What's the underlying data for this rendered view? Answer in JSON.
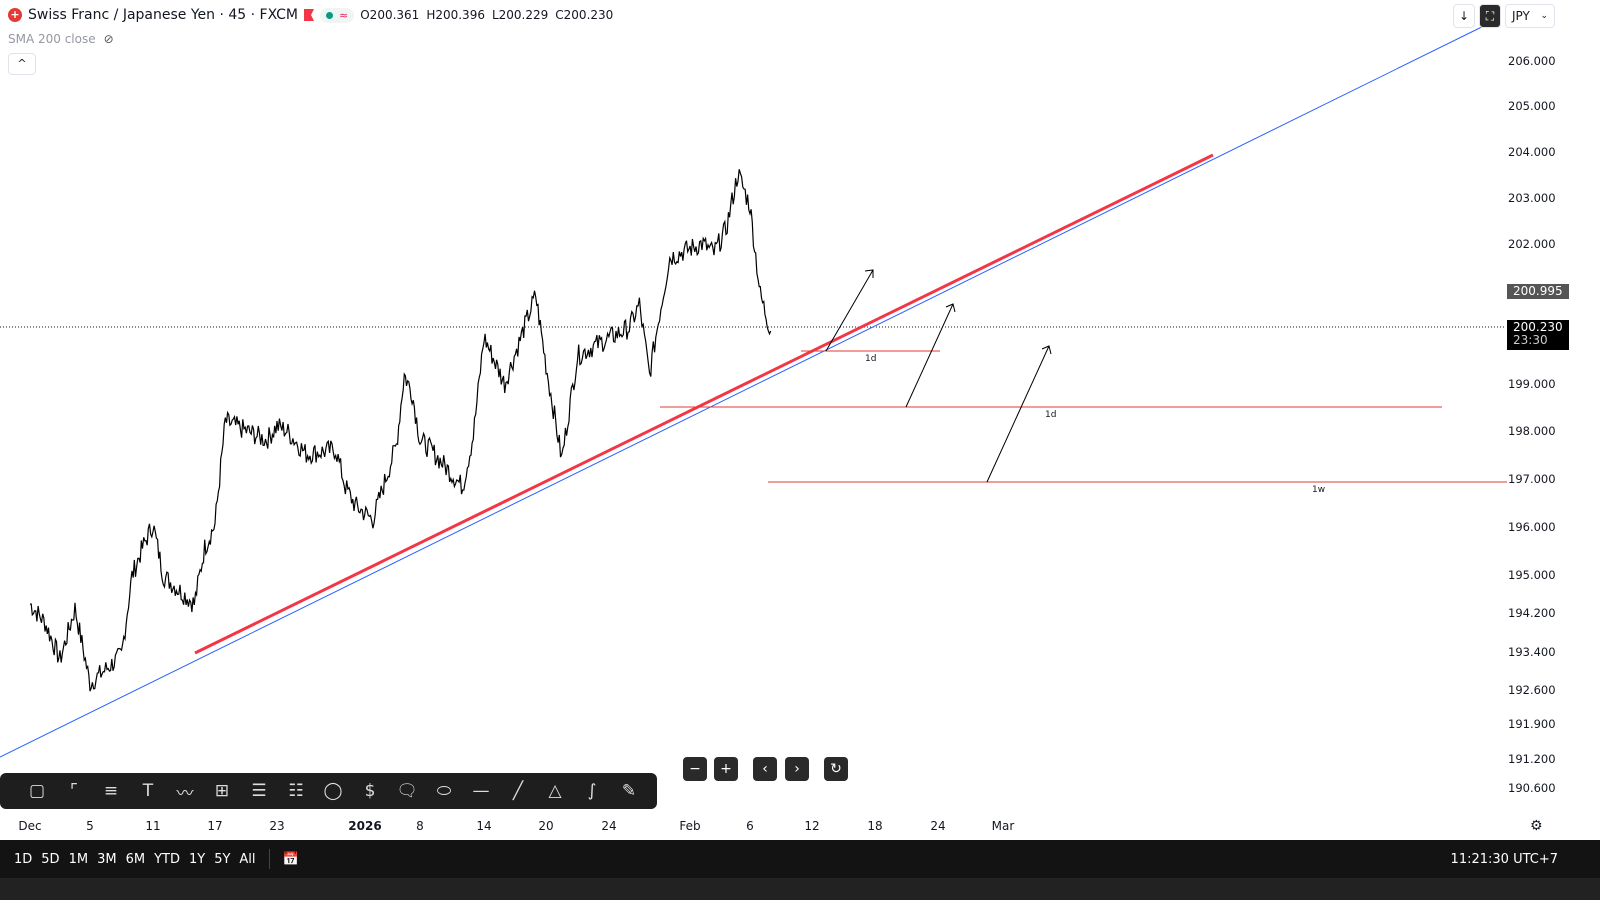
{
  "header": {
    "title": "Swiss Franc / Japanese Yen · 45 · FXCM",
    "logo_glyph": "+",
    "ohlc": {
      "o": "O200.361",
      "h": "H200.396",
      "l": "L200.229",
      "c": "C200.230"
    },
    "indicator": "SMA 200 close",
    "pill_glyph": "≈"
  },
  "top_buttons": {
    "down": "↓",
    "currency": "JPY"
  },
  "price_axis": {
    "labels": [
      "206.000",
      "205.000",
      "204.000",
      "203.000",
      "202.000",
      "199.000",
      "198.000",
      "197.000",
      "196.000",
      "195.000",
      "194.200",
      "193.400",
      "192.600",
      "191.900",
      "191.200",
      "190.600"
    ],
    "tag_high": "200.995",
    "tag_last": "200.230",
    "tag_countdown": "23:30"
  },
  "time_axis": {
    "labels": [
      "Dec",
      "5",
      "11",
      "17",
      "23",
      "2026",
      "8",
      "14",
      "20",
      "24",
      "Feb",
      "6",
      "12",
      "18",
      "24",
      "Mar"
    ]
  },
  "drawings": {
    "labels": [
      "1d",
      "1d",
      "1w"
    ],
    "colors": {
      "trend_blue": "#2962ff",
      "trend_red": "#f23645",
      "horizontal": "#e53935"
    }
  },
  "nav": {
    "zoom_out": "−",
    "zoom_in": "+",
    "back": "‹",
    "forward": "›",
    "reset": "↻"
  },
  "ranges": [
    "1D",
    "5D",
    "1M",
    "3M",
    "6M",
    "YTD",
    "1Y",
    "5Y",
    "All"
  ],
  "clock": "11:21:30 UTC+7",
  "chart_data": {
    "type": "line",
    "symbol": "CHFJPY",
    "interval": "45",
    "ylim": [
      190.4,
      206.7
    ],
    "series": [
      {
        "values": [
          [
            "Dec 1",
            194.4
          ],
          [
            "Dec 2",
            194.0
          ],
          [
            "Dec 3",
            193.2
          ],
          [
            "Dec 4",
            194.3
          ],
          [
            "Dec 5",
            192.7
          ],
          [
            "Dec 8",
            193.3
          ],
          [
            "Dec 9",
            195.0
          ],
          [
            "Dec 10",
            195.6
          ],
          [
            "Dec 11",
            196.1
          ],
          [
            "Dec 12",
            195.0
          ],
          [
            "Dec 15",
            194.4
          ],
          [
            "Dec 16",
            195.6
          ],
          [
            "Dec 17",
            196.1
          ],
          [
            "Dec 18",
            198.3
          ],
          [
            "Dec 19",
            198.2
          ],
          [
            "Dec 22",
            197.9
          ],
          [
            "Dec 23",
            198.2
          ],
          [
            "Dec 24",
            198.1
          ],
          [
            "Dec 26",
            197.6
          ],
          [
            "Dec 29",
            197.7
          ],
          [
            "Dec 30",
            196.9
          ],
          [
            "Dec 31",
            196.5
          ],
          [
            "Jan 2",
            196.2
          ],
          [
            "Jan 5",
            197.8
          ],
          [
            "Jan 6",
            199.3
          ],
          [
            "Jan 7",
            198.9
          ],
          [
            "Jan 8",
            197.9
          ],
          [
            "Jan 9",
            197.7
          ],
          [
            "Jan 12",
            196.9
          ],
          [
            "Jan 13",
            198.0
          ],
          [
            "Jan 14",
            200.1
          ],
          [
            "Jan 15",
            199.6
          ],
          [
            "Jan 16",
            199.1
          ],
          [
            "Jan 19",
            201.0
          ],
          [
            "Jan 20",
            199.5
          ],
          [
            "Jan 21",
            197.5
          ],
          [
            "Jan 22",
            199.7
          ],
          [
            "Jan 23",
            199.9
          ],
          [
            "Jan 26",
            200.3
          ],
          [
            "Jan 27",
            200.8
          ],
          [
            "Jan 28",
            199.3
          ],
          [
            "Jan 29",
            200.6
          ],
          [
            "Jan 30",
            201.8
          ],
          [
            "Feb 2",
            202.1
          ],
          [
            "Feb 3",
            201.9
          ],
          [
            "Feb 4",
            202.4
          ],
          [
            "Feb 5",
            203.6
          ],
          [
            "Feb 6",
            202.9
          ],
          [
            "Feb 7",
            201.0
          ],
          [
            "Feb 8",
            200.23
          ]
        ]
      }
    ]
  }
}
